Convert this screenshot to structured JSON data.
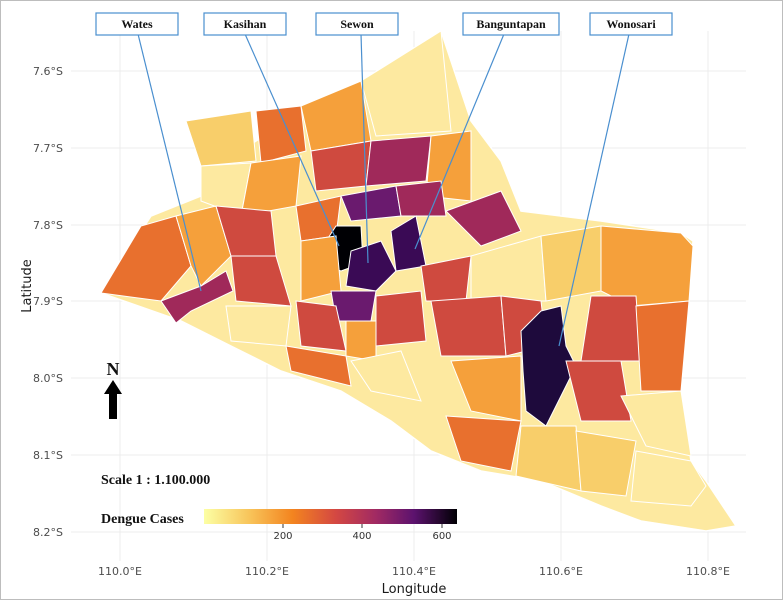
{
  "axes": {
    "xlabel": "Longitude",
    "ylabel": "Latitude",
    "x_ticks": [
      "110.0°E",
      "110.2°E",
      "110.4°E",
      "110.6°E",
      "110.8°E"
    ],
    "y_ticks": [
      "7.6°S",
      "7.7°S",
      "7.8°S",
      "7.9°S",
      "8.0°S",
      "8.1°S",
      "8.2°S"
    ]
  },
  "callouts": [
    {
      "label": "Wates"
    },
    {
      "label": "Kasihan"
    },
    {
      "label": "Sewon"
    },
    {
      "label": "Banguntapan"
    },
    {
      "label": "Wonosari"
    }
  ],
  "north_arrow": {
    "label": "N"
  },
  "scale": {
    "label": "Scale 1 : 1.100.000"
  },
  "legend": {
    "title": "Dengue Cases",
    "ticks": [
      "200",
      "400",
      "600"
    ]
  },
  "colors": {
    "very_low": "#fde9a0",
    "low": "#f8ce6a",
    "mid_low": "#f5a03b",
    "mid": "#e8702e",
    "mid_high": "#cf4a3f",
    "high": "#a0295a",
    "very_high": "#6a1a6e",
    "extreme": "#3a0a55",
    "max": "#000004"
  }
}
